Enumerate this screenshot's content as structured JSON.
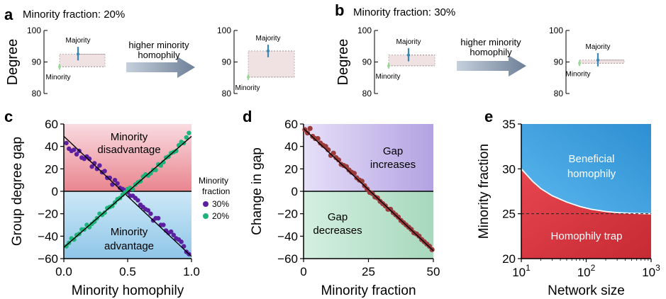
{
  "panels": {
    "a": {
      "letter": "a",
      "header": "Minority fraction: 20%",
      "arrow_text": [
        "higher minority",
        "homophily"
      ]
    },
    "b": {
      "letter": "b",
      "header": "Minority fraction: 30%",
      "arrow_text": [
        "higher minority",
        "homophily"
      ]
    },
    "c": {
      "letter": "c"
    },
    "d": {
      "letter": "d"
    },
    "e": {
      "letter": "e"
    }
  },
  "colors": {
    "majority": "#3a87b8",
    "minority": "#9cd79a",
    "purple": "#5b1fa0",
    "green": "#1db37a",
    "brown": "#9b3a3a",
    "red": "#d43039",
    "blue": "#3a9ad9"
  },
  "chart_data": [
    {
      "id": "a-left",
      "type": "errorbar",
      "ylabel": "Degree",
      "yticks": [
        80,
        90,
        100
      ],
      "ylim": [
        80,
        100
      ],
      "labels": [
        "Majority",
        "Minority"
      ],
      "majority": {
        "mean": 92.5,
        "low": 90.5,
        "high": 94.8
      },
      "minority": {
        "mean": 88.5,
        "low": 87.6,
        "high": 89.4
      }
    },
    {
      "id": "a-right",
      "type": "errorbar",
      "yticks": [
        80,
        90,
        100
      ],
      "ylim": [
        80,
        100
      ],
      "labels": [
        "Majority",
        "Minority"
      ],
      "majority": {
        "mean": 93.5,
        "low": 91.5,
        "high": 95.5
      },
      "minority": {
        "mean": 85.2,
        "low": 84.3,
        "high": 86.1
      }
    },
    {
      "id": "b-left",
      "type": "errorbar",
      "ylabel": "Degree",
      "yticks": [
        80,
        90,
        100
      ],
      "ylim": [
        80,
        100
      ],
      "labels": [
        "Majority",
        "Minority"
      ],
      "majority": {
        "mean": 92.2,
        "low": 90.2,
        "high": 94.4
      },
      "minority": {
        "mean": 88.8,
        "low": 87.9,
        "high": 89.7
      }
    },
    {
      "id": "b-right",
      "type": "errorbar",
      "yticks": [
        80,
        90,
        100
      ],
      "ylim": [
        80,
        100
      ],
      "labels": [
        "Majority",
        "Minority"
      ],
      "majority": {
        "mean": 90.6,
        "low": 88.6,
        "high": 92.8
      },
      "minority": {
        "mean": 89.6,
        "low": 88.7,
        "high": 90.5
      }
    },
    {
      "id": "c",
      "type": "scatter",
      "xlabel": "Minority homophily",
      "ylabel": "Group degree gap",
      "xlim": [
        0,
        1
      ],
      "ylim": [
        -60,
        60
      ],
      "xticks": [
        0.0,
        0.5,
        1.0
      ],
      "xtick_labels": [
        "0.0",
        "0.5",
        "1.0"
      ],
      "yticks": [
        -60,
        -40,
        -20,
        0,
        20,
        40,
        60
      ],
      "ytick_labels": [
        "−60",
        "−40",
        "−20",
        "0",
        "20",
        "40",
        "60"
      ],
      "regions": [
        "Minority disadvantage",
        "Minority advantage"
      ],
      "legend_title": [
        "Minority",
        "fraction"
      ],
      "series": [
        {
          "name": "30%",
          "fit": [
            [
              0,
              49
            ],
            [
              1,
              -58
            ]
          ],
          "x": [
            0.02,
            0.04,
            0.06,
            0.08,
            0.1,
            0.12,
            0.14,
            0.16,
            0.18,
            0.2,
            0.22,
            0.24,
            0.26,
            0.28,
            0.3,
            0.32,
            0.34,
            0.36,
            0.38,
            0.4,
            0.42,
            0.44,
            0.46,
            0.48,
            0.5,
            0.52,
            0.54,
            0.56,
            0.58,
            0.6,
            0.62,
            0.64,
            0.66,
            0.68,
            0.7,
            0.72,
            0.74,
            0.76,
            0.78,
            0.8,
            0.82,
            0.84,
            0.86,
            0.88,
            0.9,
            0.92,
            0.94,
            0.96,
            0.98
          ],
          "y": [
            43,
            38,
            36,
            37,
            33,
            36,
            30,
            29,
            31,
            29,
            22,
            25,
            20,
            23,
            17,
            18,
            12,
            12,
            6,
            10,
            7,
            3,
            2,
            1,
            -1,
            -4,
            -4,
            -6,
            -8,
            -12,
            -14,
            -16,
            -17,
            -20,
            -26,
            -24,
            -24,
            -30,
            -30,
            -35,
            -37,
            -36,
            -39,
            -42,
            -43,
            -45,
            -49,
            -54,
            -56
          ]
        },
        {
          "name": "20%",
          "fit": [
            [
              0,
              -50
            ],
            [
              1,
              49
            ]
          ],
          "x": [
            0.02,
            0.04,
            0.06,
            0.08,
            0.1,
            0.12,
            0.14,
            0.16,
            0.18,
            0.2,
            0.22,
            0.24,
            0.26,
            0.28,
            0.3,
            0.32,
            0.34,
            0.36,
            0.38,
            0.4,
            0.42,
            0.44,
            0.46,
            0.48,
            0.5,
            0.52,
            0.54,
            0.56,
            0.58,
            0.6,
            0.62,
            0.64,
            0.66,
            0.68,
            0.7,
            0.72,
            0.74,
            0.76,
            0.78,
            0.8,
            0.82,
            0.84,
            0.86,
            0.88,
            0.9,
            0.92,
            0.94,
            0.96,
            0.98
          ],
          "y": [
            -49,
            -46,
            -42,
            -43,
            -39,
            -38,
            -34,
            -34,
            -30,
            -32,
            -29,
            -27,
            -24,
            -20,
            -21,
            -19,
            -15,
            -14,
            -13,
            -10,
            -7,
            -6,
            -3,
            -1,
            2,
            3,
            2,
            6,
            8,
            9,
            13,
            15,
            14,
            16,
            19,
            19,
            24,
            23,
            26,
            30,
            31,
            34,
            35,
            36,
            41,
            44,
            43,
            48,
            52
          ]
        }
      ]
    },
    {
      "id": "d",
      "type": "scatter",
      "xlabel": "Minority fraction",
      "ylabel": "Change in gap",
      "xlim": [
        0,
        50
      ],
      "ylim": [
        -60,
        60
      ],
      "xticks": [
        0,
        25,
        50
      ],
      "xtick_labels": [
        "0",
        "25",
        "50"
      ],
      "yticks": [
        -60,
        -40,
        -20,
        0,
        20,
        40,
        60
      ],
      "ytick_labels": [
        "−60",
        "−40",
        "−20",
        "0",
        "20",
        "40",
        "60"
      ],
      "regions": [
        "Gap increases",
        "Gap decreases"
      ],
      "fit": [
        [
          0,
          56
        ],
        [
          50,
          -53
        ]
      ],
      "x": [
        0.5,
        1.5,
        2.5,
        3.5,
        4.5,
        5.5,
        6.5,
        7.5,
        8.5,
        9.5,
        10.5,
        11.5,
        12.5,
        13.5,
        14.5,
        15.5,
        16.5,
        17.5,
        18.5,
        19.5,
        20.5,
        21.5,
        22.5,
        23.5,
        24.5,
        25.5,
        26.5,
        27.5,
        28.5,
        29.5,
        30.5,
        31.5,
        32.5,
        33.5,
        34.5,
        35.5,
        36.5,
        37.5,
        38.5,
        39.5,
        40.5,
        41.5,
        42.5,
        43.5,
        44.5,
        45.5,
        46.5,
        47.5,
        48.5,
        49.5
      ],
      "y": [
        55,
        52,
        56,
        49,
        47,
        47,
        43,
        41,
        40,
        37,
        32,
        34,
        30,
        28,
        24,
        23,
        22,
        19,
        17,
        16,
        12,
        10,
        9,
        5,
        2,
        -1,
        -2,
        -5,
        -6,
        -9,
        -11,
        -13,
        -16,
        -16,
        -19,
        -21,
        -23,
        -26,
        -28,
        -30,
        -32,
        -34,
        -37,
        -38,
        -40,
        -43,
        -45,
        -47,
        -49,
        -52
      ]
    },
    {
      "id": "e",
      "type": "phase",
      "xlabel": "Network size",
      "ylabel": "Minority fraction",
      "xscale": "log",
      "xlim": [
        10,
        1000
      ],
      "ylim": [
        20,
        35
      ],
      "xticks": [
        10,
        100,
        1000
      ],
      "xtick_labels": [
        "10",
        "10",
        "10"
      ],
      "xtick_exponents": [
        "1",
        "2",
        "3"
      ],
      "yticks": [
        20,
        25,
        30,
        35
      ],
      "ytick_labels": [
        "20",
        "25",
        "30",
        "35"
      ],
      "regions": [
        "Beneficial homophily",
        "Homophily trap"
      ],
      "dashed_y": 25,
      "boundary": {
        "x": [
          10,
          15,
          20,
          30,
          50,
          80,
          120,
          200,
          300,
          500,
          700,
          1000
        ],
        "y": [
          30.0,
          28.6,
          27.8,
          27.0,
          26.3,
          25.8,
          25.5,
          25.25,
          25.12,
          25.05,
          25.02,
          25.0
        ]
      }
    }
  ]
}
